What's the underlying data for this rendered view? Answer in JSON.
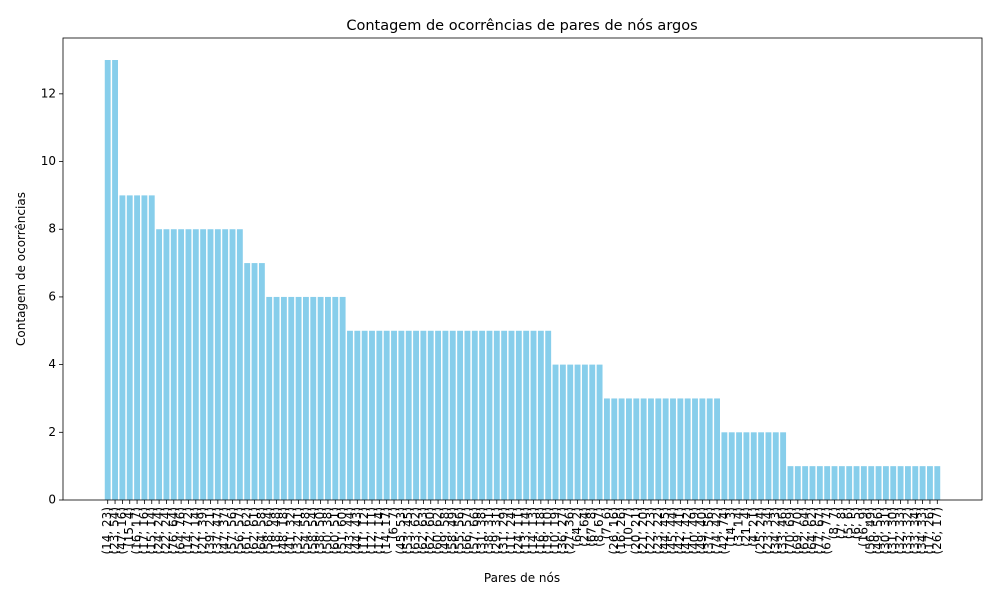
{
  "chart_data": {
    "type": "bar",
    "title": "Contagem de ocorrências de pares de nós argos",
    "xlabel": "Pares de nós",
    "ylabel": "Contagem de ocorrências",
    "color": "#87ceeb",
    "categories": [
      "(14, 23)",
      "(23, 54)",
      "(47, 16)",
      "(15, 4)",
      "(16, 17)",
      "(17, 16)",
      "(15, 14)",
      "(24, 24)",
      "(22, 24)",
      "(76, 64)",
      "(64, 76)",
      "(14, 72)",
      "(72, 14)",
      "(21, 39)",
      "(39, 21)",
      "(37, 47)",
      "(47, 37)",
      "(57, 56)",
      "(56, 57)",
      "(61, 62)",
      "(62, 61)",
      "(64, 58)",
      "(58, 64)",
      "(18, 48)",
      "(48, 18)",
      "(41, 32)",
      "(32, 41)",
      "(54, 58)",
      "(58, 54)",
      "(38, 50)",
      "(50, 38)",
      "(60, 51)",
      "(51, 60)",
      "(43, 44)",
      "(44, 43)",
      "(11, 12)",
      "(12, 11)",
      "(17, 14)",
      "(14, 17)",
      "(6, 7)",
      "(45, 53)",
      "(53, 45)",
      "(63, 62)",
      "(62, 63)",
      "(62, 60)",
      "(60, 62)",
      "(49, 58)",
      "(58, 49)",
      "(55, 56)",
      "(66, 57)",
      "(57, 66)",
      "(31, 38)",
      "(38, 31)",
      "(29, 31)",
      "(31, 29)",
      "(11, 24)",
      "(24, 11)",
      "(13, 14)",
      "(14, 13)",
      "(16, 18)",
      "(19, 10)",
      "(10, 19)",
      "(36, 27)",
      "(27, 36)",
      "(64, 2)",
      "(2, 64)",
      "(67, 8)",
      "(8, 67)",
      "(7, 6)",
      "(26, 16)",
      "(16, 26)",
      "(10, 7)",
      "(20, 21)",
      "(21, 20)",
      "(22, 23)",
      "(23, 22)",
      "(44, 45)",
      "(45, 44)",
      "(42, 41)",
      "(41, 42)",
      "(40, 49)",
      "(49, 40)",
      "(37, 56)",
      "(74, 42)",
      "(42, 74)",
      "(14, 3)",
      "(3, 14)",
      "(21, 4)",
      "(4, 21)",
      "(25, 24)",
      "(23, 34)",
      "(34, 23)",
      "(33, 46)",
      "(70, 69)",
      "(69, 70)",
      "(62, 64)",
      "(64, 62)",
      "(77, 67)",
      "(67, 77)",
      "(8, 7)",
      "(7, 8)",
      "(5, 6)",
      "(6, 5)",
      "(16, 9)",
      "(56, 49)",
      "(49, 56)",
      "(30, 31)",
      "(31, 30)",
      "(32, 33)",
      "(33, 32)",
      "(33, 34)",
      "(34, 33)",
      "(17, 26)",
      "(26, 17)"
    ],
    "values": [
      13,
      13,
      9,
      9,
      9,
      9,
      9,
      8,
      8,
      8,
      8,
      8,
      8,
      8,
      8,
      8,
      8,
      8,
      8,
      7,
      7,
      7,
      6,
      6,
      6,
      6,
      6,
      6,
      6,
      6,
      6,
      6,
      6,
      5,
      5,
      5,
      5,
      5,
      5,
      5,
      5,
      5,
      5,
      5,
      5,
      5,
      5,
      5,
      5,
      5,
      5,
      5,
      5,
      5,
      5,
      5,
      5,
      5,
      5,
      5,
      5,
      4,
      4,
      4,
      4,
      4,
      4,
      4,
      3,
      3,
      3,
      3,
      3,
      3,
      3,
      3,
      3,
      3,
      3,
      3,
      3,
      3,
      3,
      3,
      2,
      2,
      2,
      2,
      2,
      2,
      2,
      2,
      2,
      1,
      1,
      1,
      1,
      1,
      1,
      1,
      1,
      1,
      1,
      1,
      1,
      1,
      1,
      1,
      1,
      1,
      1,
      1,
      1,
      1
    ],
    "ylim": [
      0,
      13.65
    ],
    "yticks": [
      0,
      2,
      4,
      6,
      8,
      10,
      12
    ]
  }
}
